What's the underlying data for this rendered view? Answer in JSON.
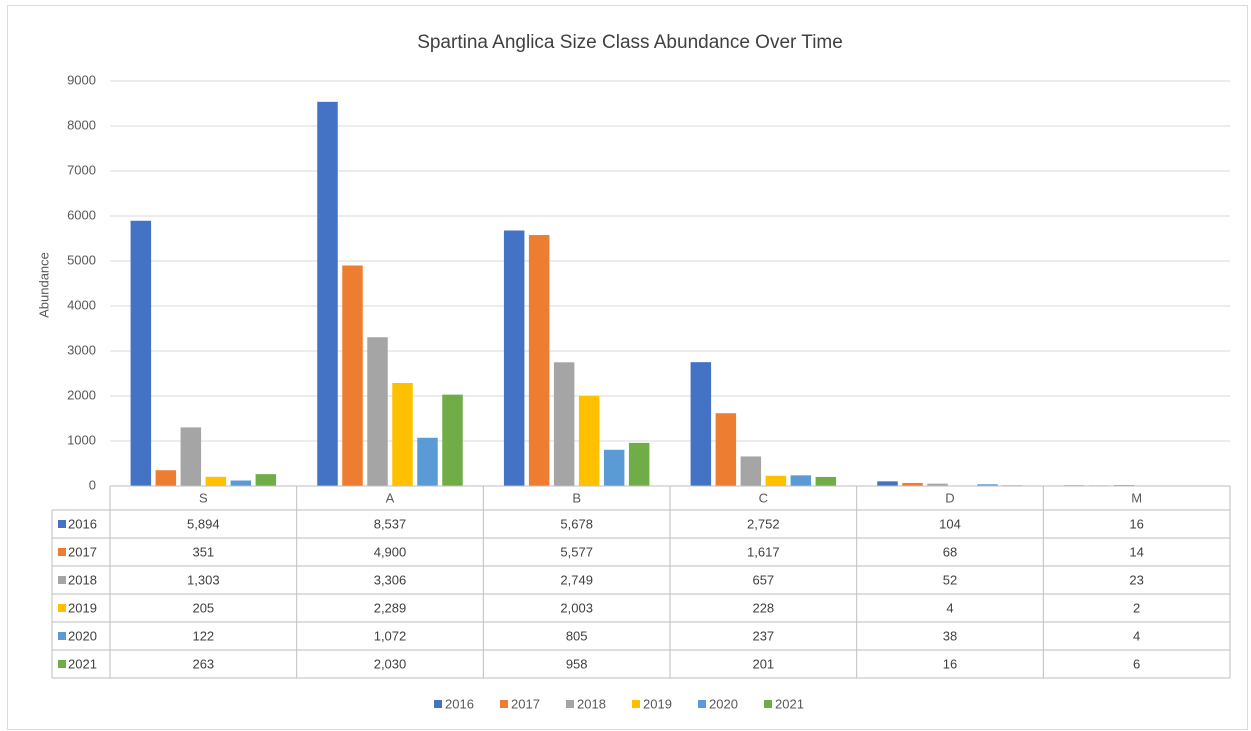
{
  "chart_data": {
    "type": "bar",
    "title": "Spartina Anglica Size Class Abundance Over Time",
    "y_label": "Abundance",
    "categories": [
      "S",
      "A",
      "B",
      "C",
      "D",
      "M"
    ],
    "series": [
      {
        "name": "2016",
        "color": "#4472c4",
        "values": [
          5894,
          8537,
          5678,
          2752,
          104,
          16
        ],
        "value_labels": [
          "5,894",
          "8,537",
          "5,678",
          "2,752",
          "104",
          "16"
        ]
      },
      {
        "name": "2017",
        "color": "#ed7d31",
        "values": [
          351,
          4900,
          5577,
          1617,
          68,
          14
        ],
        "value_labels": [
          "351",
          "4,900",
          "5,577",
          "1,617",
          "68",
          "14"
        ]
      },
      {
        "name": "2018",
        "color": "#a5a5a5",
        "values": [
          1303,
          3306,
          2749,
          657,
          52,
          23
        ],
        "value_labels": [
          "1,303",
          "3,306",
          "2,749",
          "657",
          "52",
          "23"
        ]
      },
      {
        "name": "2019",
        "color": "#ffc000",
        "values": [
          205,
          2289,
          2003,
          228,
          4,
          2
        ],
        "value_labels": [
          "205",
          "2,289",
          "2,003",
          "228",
          "4",
          "2"
        ]
      },
      {
        "name": "2020",
        "color": "#5b9bd5",
        "values": [
          122,
          1072,
          805,
          237,
          38,
          4
        ],
        "value_labels": [
          "122",
          "1,072",
          "805",
          "237",
          "38",
          "4"
        ]
      },
      {
        "name": "2021",
        "color": "#70ad47",
        "values": [
          263,
          2030,
          958,
          201,
          16,
          6
        ],
        "value_labels": [
          "263",
          "2,030",
          "958",
          "201",
          "16",
          "6"
        ]
      }
    ],
    "ylim": [
      0,
      9000
    ],
    "yticks": [
      0,
      1000,
      2000,
      3000,
      4000,
      5000,
      6000,
      7000,
      8000,
      9000
    ],
    "grid": true,
    "legend": "bottom"
  }
}
